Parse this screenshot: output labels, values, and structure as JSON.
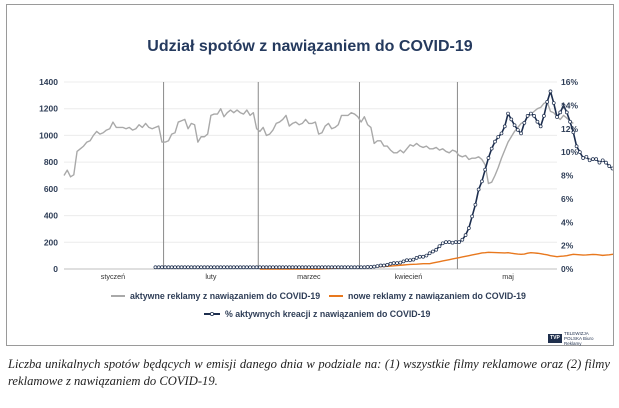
{
  "chart_data": {
    "type": "line",
    "title": "Udział spotów z nawiązaniem do COVID-19",
    "left_axis": {
      "min": 0,
      "max": 1400,
      "ticks": [
        "0",
        "200",
        "400",
        "600",
        "800",
        "1000",
        "1200",
        "1400"
      ]
    },
    "right_axis": {
      "min": 0,
      "max": 16,
      "ticks": [
        "0%",
        "2%",
        "4%",
        "6%",
        "8%",
        "10%",
        "12%",
        "14%",
        "16%"
      ]
    },
    "months": [
      "styczeń",
      "luty",
      "marzec",
      "kwiecień",
      "maj"
    ],
    "days_per_month": [
      31,
      29,
      31,
      30,
      31
    ],
    "series": [
      {
        "name": "aktywne reklamy z nawiązaniem do COVID-19",
        "axis": "left",
        "color": "#a9a9a9",
        "start_day": 0,
        "values": [
          700,
          740,
          690,
          705,
          880,
          900,
          920,
          950,
          960,
          1000,
          1030,
          1010,
          1020,
          1040,
          1050,
          1100,
          1060,
          1060,
          1060,
          1050,
          1060,
          1040,
          1050,
          1080,
          1060,
          1090,
          1060,
          1050,
          1060,
          1070,
          950,
          950,
          960,
          1010,
          1020,
          1100,
          1110,
          1120,
          1050,
          1090,
          1080,
          950,
          990,
          990,
          1010,
          1150,
          1160,
          1160,
          1200,
          1140,
          1170,
          1190,
          1170,
          1190,
          1170,
          1160,
          1190,
          1150,
          1170,
          1050,
          1030,
          1060,
          1000,
          1010,
          1040,
          1090,
          1100,
          1120,
          1150,
          1070,
          1090,
          1100,
          1080,
          1090,
          1120,
          1090,
          1090,
          1100,
          1010,
          1020,
          1070,
          1090,
          1050,
          1060,
          1080,
          1150,
          1150,
          1150,
          1170,
          1160,
          1140,
          1100,
          1140,
          1080,
          1060,
          940,
          960,
          960,
          920,
          920,
          890,
          870,
          870,
          890,
          870,
          900,
          930,
          920,
          940,
          920,
          910,
          920,
          900,
          900,
          910,
          890,
          900,
          880,
          870,
          890,
          880,
          850,
          840,
          850,
          820,
          830,
          830,
          840,
          820,
          780,
          640,
          650,
          700,
          760,
          830,
          890,
          950,
          990,
          1030,
          1060,
          1090,
          1100,
          1140,
          1160,
          1180,
          1200,
          1210,
          1240,
          1250,
          1180,
          1170,
          1140,
          1120,
          1150,
          1130,
          1110,
          1090
        ]
      },
      {
        "name": "nowe reklamy z nawiązaniem do COVID-19",
        "axis": "left",
        "color": "#e8781e",
        "start_day": 60,
        "values": [
          0,
          0,
          0,
          0,
          0,
          0,
          0,
          0,
          0,
          0,
          0,
          0,
          0,
          0,
          0,
          0,
          0,
          0,
          0,
          1,
          2,
          3,
          4,
          5,
          6,
          7,
          8,
          9,
          10,
          11,
          12,
          13,
          14,
          15,
          16,
          16,
          17,
          18,
          19,
          20,
          22,
          24,
          26,
          28,
          30,
          32,
          34,
          35,
          36,
          38,
          40,
          40,
          40,
          45,
          50,
          55,
          60,
          65,
          70,
          75,
          80,
          85,
          90,
          95,
          100,
          105,
          110,
          115,
          120,
          122,
          125,
          124,
          123,
          122,
          121,
          120,
          122,
          118,
          115,
          112,
          110,
          112,
          118,
          122,
          120,
          118,
          115,
          110,
          106,
          100,
          96,
          92,
          95,
          97,
          100,
          105,
          110,
          108,
          106,
          104,
          105,
          107,
          109,
          108,
          105,
          102,
          104,
          106,
          110,
          112,
          110,
          108,
          106,
          104,
          102,
          100,
          99,
          98,
          97,
          96,
          95,
          94,
          93,
          92,
          92,
          91,
          90,
          89,
          88,
          87,
          86,
          86,
          87,
          88,
          88,
          88,
          87,
          86,
          86,
          85,
          85,
          84,
          83,
          82,
          81,
          80,
          79,
          78,
          77
        ]
      },
      {
        "name": "% aktywnych kreacji z nawiązaniem do COVID-19",
        "axis": "right",
        "color": "#1d2e4e",
        "marker": "dot",
        "start_day": 28,
        "values": [
          0.15,
          0.15,
          0.15,
          0.15,
          0.15,
          0.15,
          0.15,
          0.15,
          0.15,
          0.15,
          0.15,
          0.15,
          0.15,
          0.15,
          0.15,
          0.15,
          0.15,
          0.15,
          0.15,
          0.15,
          0.15,
          0.15,
          0.15,
          0.15,
          0.15,
          0.15,
          0.15,
          0.15,
          0.15,
          0.15,
          0.15,
          0.15,
          0.15,
          0.15,
          0.15,
          0.15,
          0.15,
          0.15,
          0.15,
          0.15,
          0.15,
          0.15,
          0.15,
          0.15,
          0.15,
          0.15,
          0.15,
          0.15,
          0.15,
          0.15,
          0.15,
          0.15,
          0.15,
          0.15,
          0.15,
          0.15,
          0.15,
          0.15,
          0.15,
          0.15,
          0.15,
          0.15,
          0.15,
          0.15,
          0.15,
          0.17,
          0.17,
          0.2,
          0.25,
          0.3,
          0.3,
          0.35,
          0.45,
          0.5,
          0.5,
          0.55,
          0.65,
          0.75,
          0.75,
          0.8,
          0.95,
          1.05,
          1.05,
          1.15,
          1.35,
          1.5,
          1.65,
          1.95,
          2.2,
          2.3,
          2.3,
          2.25,
          2.3,
          2.3,
          2.5,
          2.9,
          3.5,
          4.5,
          5.5,
          6.8,
          7.5,
          8.5,
          9.5,
          10.3,
          10.9,
          11.3,
          11.6,
          12.2,
          13.3,
          12.8,
          12.3,
          11.9,
          11.6,
          12.5,
          13.1,
          13.3,
          13.1,
          12.6,
          12.2,
          13.1,
          14.3,
          15.2,
          14.2,
          13.0,
          13.4,
          14.0,
          13.4,
          12.6,
          11.7,
          10.5,
          10.0,
          9.5,
          9.6,
          9.3,
          9.4,
          9.4,
          9.1,
          9.3,
          9.1,
          8.8,
          8.6,
          8.4,
          8.0,
          7.9,
          8.2,
          7.8,
          8.0,
          7.9,
          7.0,
          7.2,
          7.3
        ]
      }
    ]
  },
  "legend": {
    "item1": "aktywne reklamy z nawiązaniem do COVID-19",
    "item2": "nowe reklamy z nawiązaniem do COVID-19",
    "item3": "% aktywnych kreacji z nawiązaniem do COVID-19"
  },
  "logo": {
    "mark": "TVP",
    "text": "TELEWIZJA POLSKA Biuro Reklamy"
  },
  "caption": "Liczba unikalnych spotów będących w emisji danego dnia w podziale na: (1) wszystkie filmy reklamowe oraz (2) filmy reklamowe z nawiązaniem do COVID-19."
}
